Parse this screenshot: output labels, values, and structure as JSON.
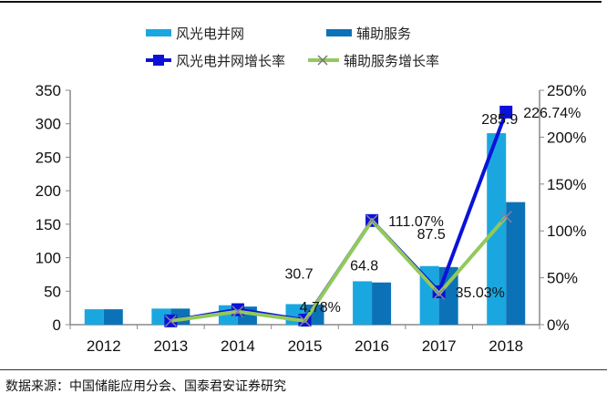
{
  "chart_data": {
    "type": "bar+line",
    "categories": [
      "2012",
      "2013",
      "2014",
      "2015",
      "2016",
      "2017",
      "2018"
    ],
    "bar_series": [
      {
        "name": "风光电并网",
        "color": "#1aa7e0",
        "values": [
          23,
          24,
          29,
          30.7,
          64.8,
          87.5,
          285.9
        ]
      },
      {
        "name": "辅助服务",
        "color": "#0b72b8",
        "values": [
          23,
          24,
          27,
          30,
          63,
          86,
          183
        ]
      }
    ],
    "line_series": [
      {
        "name": "风光电并网增长率",
        "color": "#0a12d8",
        "marker": "square",
        "values": [
          null,
          4,
          16,
          4.78,
          111.07,
          35.03,
          226.74
        ]
      },
      {
        "name": "辅助服务增长率",
        "color": "#92c95a",
        "marker": "x",
        "values": [
          null,
          4,
          14,
          4,
          111,
          33,
          115
        ]
      }
    ],
    "data_labels": [
      {
        "text": "30.7"
      },
      {
        "text": "64.8"
      },
      {
        "text": "87.5"
      },
      {
        "text": "285.9"
      },
      {
        "text": "4.78%"
      },
      {
        "text": "111.07%"
      },
      {
        "text": "35.03%"
      },
      {
        "text": "226.74%"
      }
    ],
    "y_left": {
      "range": [
        0,
        350
      ],
      "ticks": [
        "0",
        "50",
        "100",
        "150",
        "200",
        "250",
        "300",
        "350"
      ]
    },
    "y_right": {
      "range": [
        0,
        250
      ],
      "ticks": [
        "0%",
        "50%",
        "100%",
        "150%",
        "200%",
        "250%"
      ]
    },
    "legend_position": "top"
  },
  "source": "数据来源：中国储能应用分会、国泰君安证券研究"
}
